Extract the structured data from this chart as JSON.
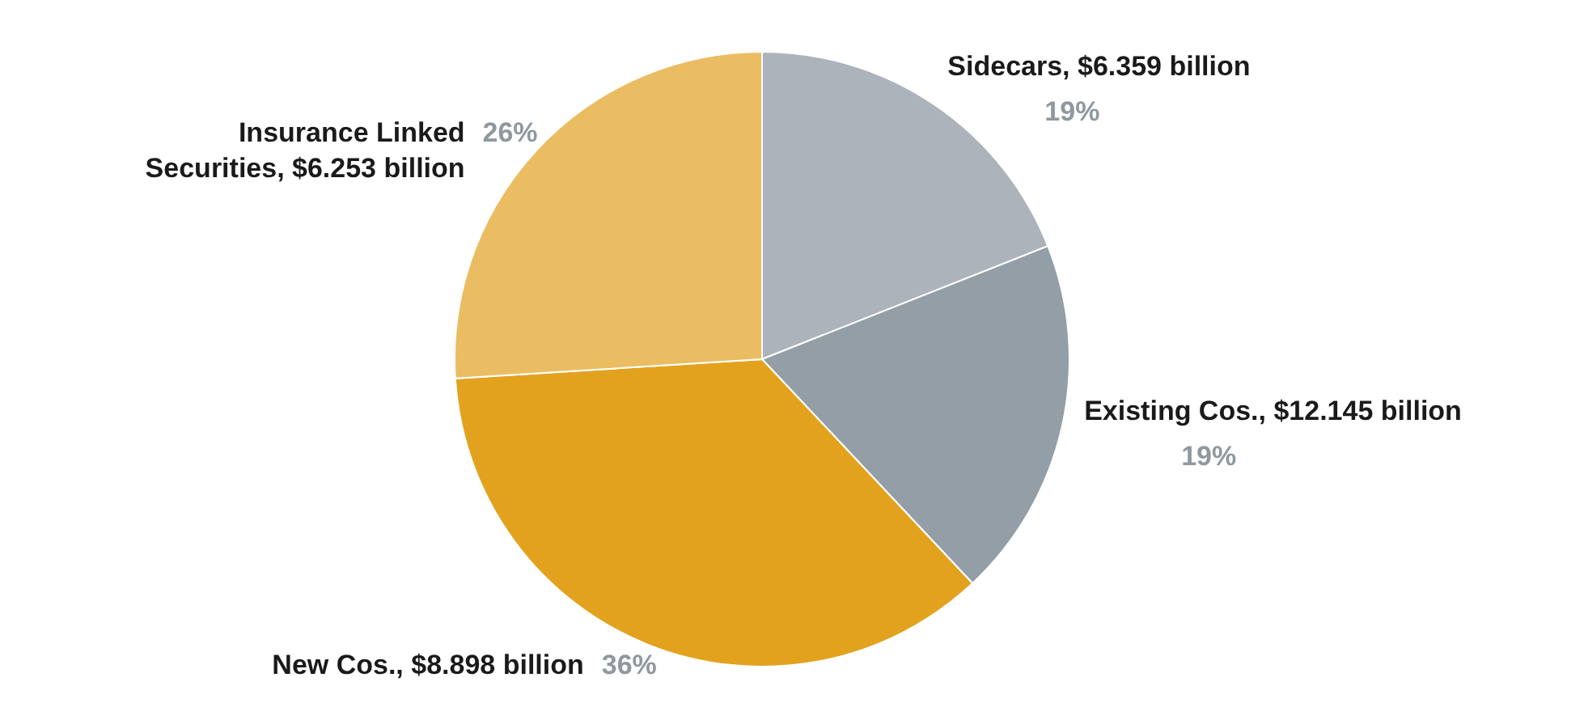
{
  "chart_data": {
    "type": "pie",
    "categories": [
      "Sidecars, $6.359  billion",
      "Existing Cos., $12.145  billion",
      "New Cos., $8.898  billion",
      "Insurance Linked\nSecurities, $6.253 billion"
    ],
    "values": [
      19,
      19,
      36,
      26
    ],
    "value_labels": [
      "19%",
      "19%",
      "36%",
      "26%"
    ],
    "colors": [
      "#adb3ba",
      "#939ea6",
      "#e3a21e",
      "#ebbd62"
    ]
  }
}
